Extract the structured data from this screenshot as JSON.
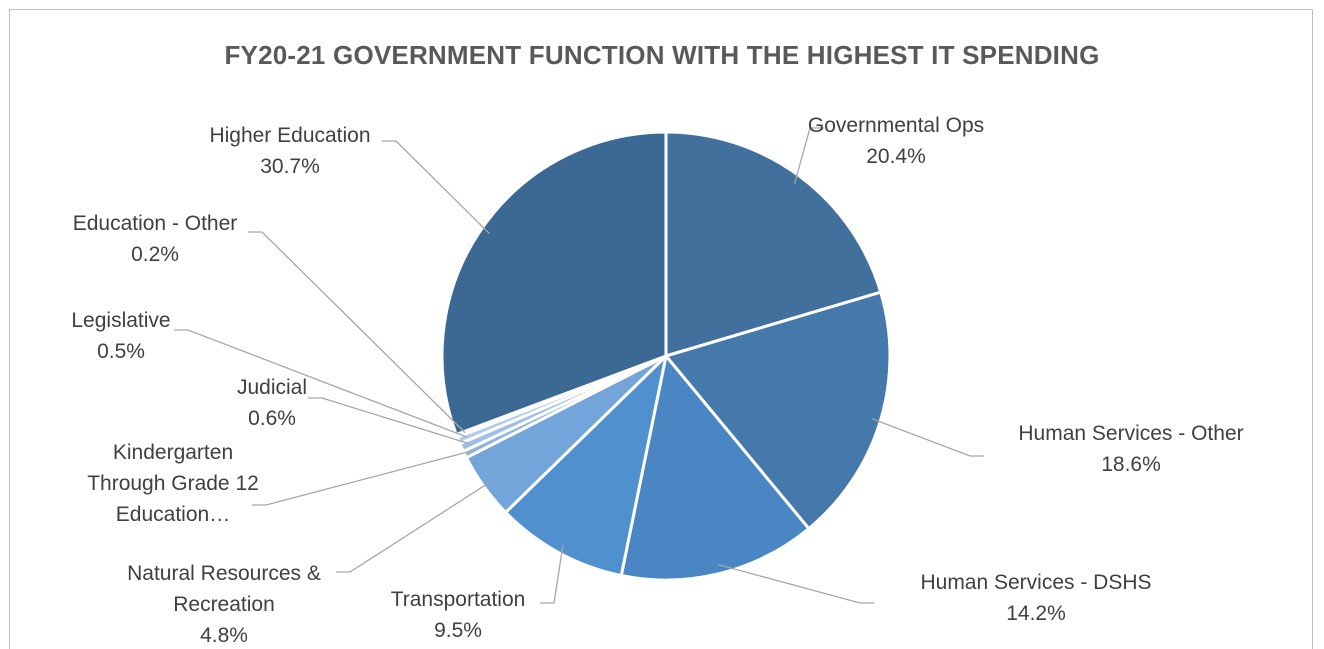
{
  "chart_data": {
    "type": "pie",
    "title": "FY20-21 GOVERNMENT FUNCTION WITH THE HIGHEST IT SPENDING",
    "slices": [
      {
        "name": "Governmental Ops",
        "value": 20.4,
        "label": "20.4%",
        "color": "#41709c"
      },
      {
        "name": "Human Services - Other",
        "value": 18.6,
        "label": "18.6%",
        "color": "#4679ab"
      },
      {
        "name": "Human Services - DSHS",
        "value": 14.2,
        "label": "14.2%",
        "color": "#4a86c3"
      },
      {
        "name": "Transportation",
        "value": 9.5,
        "label": "9.5%",
        "color": "#5190ce"
      },
      {
        "name": "Natural Resources & Recreation",
        "value": 4.8,
        "label": "4.8%",
        "color": "#73a5da"
      },
      {
        "name": "Kindergarten Through Grade 12 Education…",
        "value": 0.5,
        "label": "",
        "color": "#8db5e0"
      },
      {
        "name": "Judicial",
        "value": 0.6,
        "label": "0.6%",
        "color": "#9ec0e5"
      },
      {
        "name": "Legislative",
        "value": 0.5,
        "label": "0.5%",
        "color": "#b2cde9"
      },
      {
        "name": "Education - Other",
        "value": 0.2,
        "label": "0.2%",
        "color": "#c6d9ee"
      },
      {
        "name": "Higher Education",
        "value": 30.7,
        "label": "30.7%",
        "color": "#3b6993"
      }
    ],
    "labels": [
      {
        "lines": [
          "Governmental Ops"
        ],
        "pct": "20.4%"
      },
      {
        "lines": [
          "Human Services - Other"
        ],
        "pct": "18.6%"
      },
      {
        "lines": [
          "Human Services - DSHS"
        ],
        "pct": "14.2%"
      },
      {
        "lines": [
          "Transportation"
        ],
        "pct": "9.5%"
      },
      {
        "lines": [
          "Natural Resources &",
          "Recreation"
        ],
        "pct": "4.8%"
      },
      {
        "lines": [
          "Kindergarten",
          "Through Grade 12",
          "Education…"
        ],
        "pct": ""
      },
      {
        "lines": [
          "Judicial"
        ],
        "pct": "0.6%"
      },
      {
        "lines": [
          "Legislative"
        ],
        "pct": "0.5%"
      },
      {
        "lines": [
          "Education - Other"
        ],
        "pct": "0.2%"
      },
      {
        "lines": [
          "Higher Education"
        ],
        "pct": "30.7%"
      }
    ],
    "legend": "none"
  }
}
